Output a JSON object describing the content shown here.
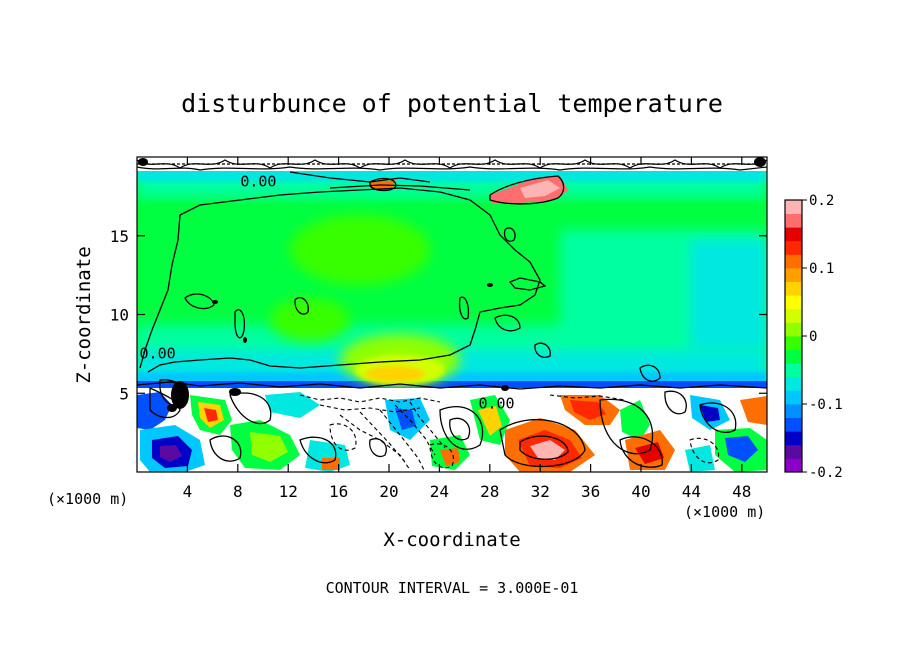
{
  "chart_data": {
    "type": "heatmap",
    "title": "disturbunce of potential temperature",
    "xlabel": "X-coordinate",
    "ylabel": "Z-coordinate",
    "x_unit": "(×1000 m)",
    "x_unit_right": "(×1000 m)",
    "xlim": [
      0,
      50
    ],
    "ylim": [
      0,
      20
    ],
    "x_ticks": [
      4,
      8,
      12,
      16,
      20,
      24,
      28,
      32,
      36,
      40,
      44,
      48
    ],
    "y_ticks": [
      5,
      10,
      15
    ],
    "colorbar": {
      "range": [
        -0.2,
        0.2
      ],
      "tick_values": [
        0.2,
        0.1,
        0,
        -0.1,
        -0.2
      ],
      "tick_labels": [
        "0.2",
        "0.1",
        "0",
        "-0.1",
        "-0.2"
      ],
      "colors": [
        "#8c00c8",
        "#5a0aa0",
        "#0000c8",
        "#0050ff",
        "#0090ff",
        "#00c8ff",
        "#00e8e0",
        "#00ffa0",
        "#00ff40",
        "#38ff00",
        "#90ff00",
        "#d2ff00",
        "#ffff00",
        "#ffd200",
        "#ffa000",
        "#ff6e00",
        "#ff2800",
        "#e60000",
        "#ff6e6e",
        "#ffb4b4"
      ]
    },
    "contour_labels": [
      {
        "text": "0.00",
        "x": 8.2,
        "z": 18.5
      },
      {
        "text": "0.00",
        "x": 0.2,
        "z": 7.6
      },
      {
        "text": "0.00",
        "x": 27.1,
        "z": 4.4
      }
    ],
    "footer": "CONTOUR INTERVAL = 3.000E-01"
  }
}
